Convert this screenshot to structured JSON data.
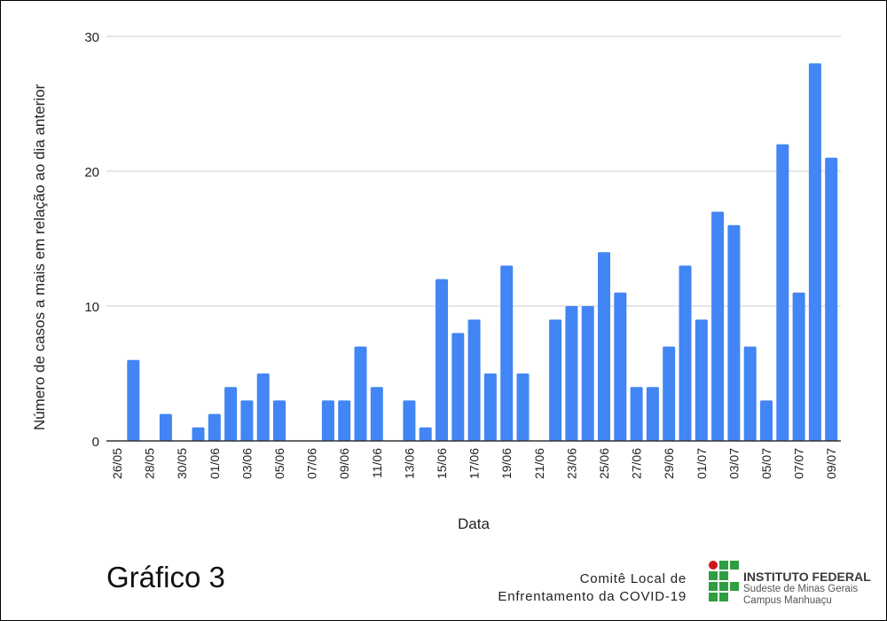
{
  "chart_data": {
    "type": "bar",
    "title": "",
    "xlabel": "Data",
    "ylabel": "Número de casos a mais em relação ao dia anterior",
    "ylim": [
      0,
      30
    ],
    "yticks": [
      0,
      10,
      20,
      30
    ],
    "grid": true,
    "color": "#4285F4",
    "categories": [
      "26/05",
      "27/05",
      "28/05",
      "29/05",
      "30/05",
      "31/05",
      "01/06",
      "02/06",
      "03/06",
      "04/06",
      "05/06",
      "06/06",
      "07/06",
      "08/06",
      "09/06",
      "10/06",
      "11/06",
      "12/06",
      "13/06",
      "14/06",
      "15/06",
      "16/06",
      "17/06",
      "18/06",
      "19/06",
      "20/06",
      "21/06",
      "22/06",
      "23/06",
      "24/06",
      "25/06",
      "26/06",
      "27/06",
      "28/06",
      "29/06",
      "30/06",
      "01/07",
      "02/07",
      "03/07",
      "04/07",
      "05/07",
      "06/07",
      "07/07",
      "08/07",
      "09/07"
    ],
    "values": [
      0,
      6,
      0,
      2,
      0,
      1,
      2,
      4,
      3,
      5,
      3,
      0,
      0,
      3,
      3,
      7,
      4,
      0,
      3,
      1,
      12,
      8,
      9,
      5,
      13,
      5,
      0,
      9,
      10,
      10,
      14,
      11,
      4,
      4,
      7,
      13,
      9,
      17,
      16,
      7,
      3,
      22,
      11,
      28,
      21
    ]
  },
  "caption": "Gráfico 3",
  "committee": {
    "line1": "Comitê Local de",
    "line2": "Enfrentamento da COVID-19"
  },
  "institution": {
    "name": "INSTITUTO FEDERAL",
    "line2": "Sudeste de Minas Gerais",
    "line3": "Campus Manhuaçu",
    "green": "#2F9E41",
    "red": "#CD191E"
  }
}
